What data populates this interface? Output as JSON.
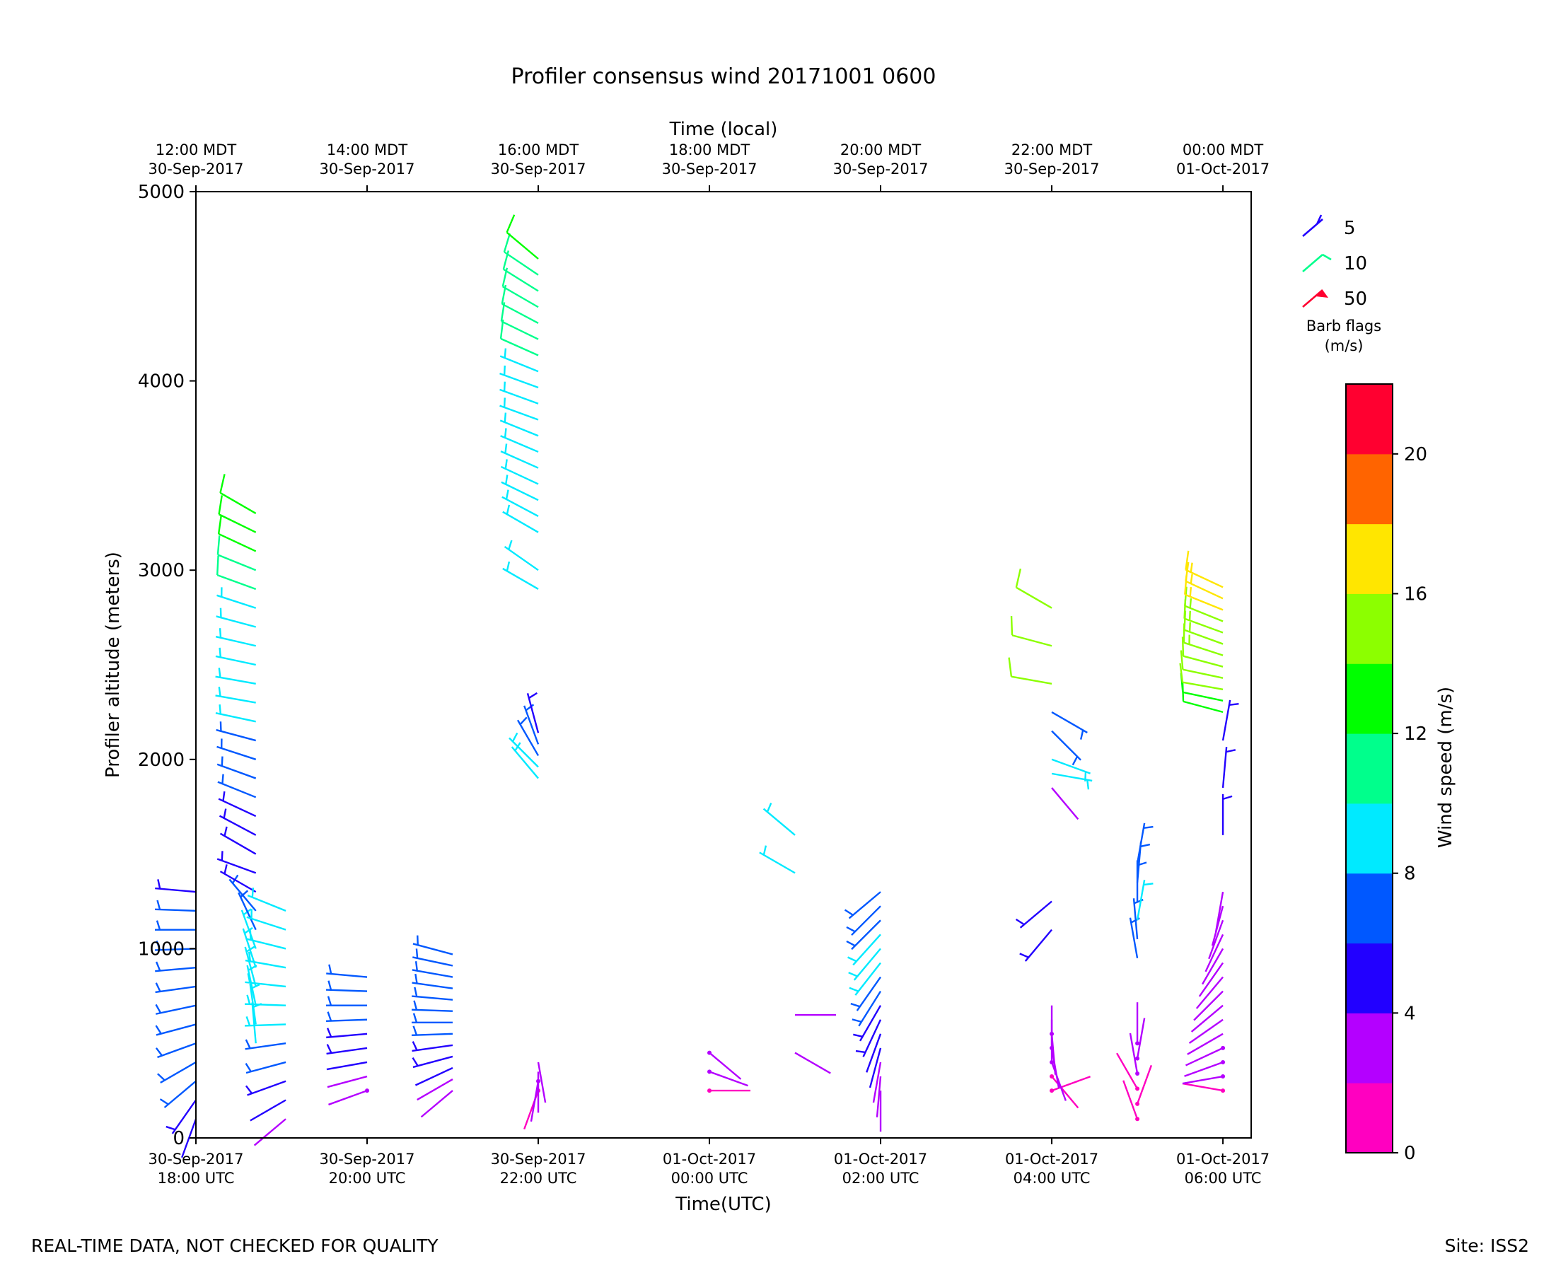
{
  "title": "Profiler consensus wind 20171001 0600",
  "footer_left": "REAL-TIME DATA, NOT CHECKED FOR QUALITY",
  "footer_right": "Site: ISS2",
  "chart_data": {
    "type": "wind-barb time-height",
    "title": "Profiler consensus wind 20171001 0600",
    "xlabel_bottom": "Time(UTC)",
    "xlabel_top": "Time (local)",
    "ylabel": "Profiler altitude (meters)",
    "ylim": [
      0,
      5000
    ],
    "yticks": [
      0,
      1000,
      2000,
      3000,
      4000,
      5000
    ],
    "xticks_bottom": [
      {
        "hour": 0,
        "line1": "30-Sep-2017",
        "line2": "18:00 UTC"
      },
      {
        "hour": 2,
        "line1": "30-Sep-2017",
        "line2": "20:00 UTC"
      },
      {
        "hour": 4,
        "line1": "30-Sep-2017",
        "line2": "22:00 UTC"
      },
      {
        "hour": 6,
        "line1": "01-Oct-2017",
        "line2": "00:00 UTC"
      },
      {
        "hour": 8,
        "line1": "01-Oct-2017",
        "line2": "02:00 UTC"
      },
      {
        "hour": 10,
        "line1": "01-Oct-2017",
        "line2": "04:00 UTC"
      },
      {
        "hour": 12,
        "line1": "01-Oct-2017",
        "line2": "06:00 UTC"
      }
    ],
    "xticks_top": [
      {
        "hour": 0,
        "line1": "12:00 MDT",
        "line2": "30-Sep-2017"
      },
      {
        "hour": 2,
        "line1": "14:00 MDT",
        "line2": "30-Sep-2017"
      },
      {
        "hour": 4,
        "line1": "16:00 MDT",
        "line2": "30-Sep-2017"
      },
      {
        "hour": 6,
        "line1": "18:00 MDT",
        "line2": "30-Sep-2017"
      },
      {
        "hour": 8,
        "line1": "20:00 MDT",
        "line2": "30-Sep-2017"
      },
      {
        "hour": 10,
        "line1": "22:00 MDT",
        "line2": "30-Sep-2017"
      },
      {
        "hour": 12,
        "line1": "00:00 MDT",
        "line2": "01-Oct-2017"
      }
    ],
    "xlim_hours": [
      0,
      12.33
    ],
    "colorbar": {
      "label": "Wind speed (m/s)",
      "range": [
        0,
        22
      ],
      "ticks": [
        0,
        4,
        8,
        12,
        16,
        20
      ],
      "colors": [
        "#ff00c0",
        "#b400ff",
        "#2200ff",
        "#0058ff",
        "#00eaff",
        "#00ff8c",
        "#00ff00",
        "#8cff00",
        "#ffe600",
        "#ff6400",
        "#ff0030"
      ]
    },
    "legend": {
      "title": "Barb flags\n(m/s)",
      "items": [
        {
          "label": "5",
          "color": "#2200ff"
        },
        {
          "label": "10",
          "color": "#00ff8c"
        },
        {
          "label": "50",
          "color": "#ff0030"
        }
      ]
    },
    "profiles": [
      {
        "hour": 0.0,
        "z0": 100,
        "z1": 1300,
        "dz": 100,
        "speed": [
          4,
          5,
          6,
          6,
          7,
          7,
          7,
          7,
          6,
          6,
          6,
          6,
          5
        ],
        "dir": [
          200,
          215,
          230,
          240,
          250,
          255,
          258,
          262,
          265,
          268,
          270,
          272,
          275
        ]
      },
      {
        "hour": 0.7,
        "z0": 1500,
        "z1": 3300,
        "dz": 100,
        "speed": [
          5,
          5,
          5,
          6,
          6,
          7,
          7,
          8,
          8,
          9,
          9,
          9,
          9,
          9,
          10,
          11,
          12,
          13,
          13
        ],
        "dir": [
          300,
          298,
          295,
          292,
          290,
          288,
          285,
          282,
          280,
          280,
          282,
          283,
          285,
          288,
          290,
          292,
          295,
          296,
          300
        ]
      },
      {
        "hour": 0.7,
        "z0": 500,
        "z1": 1400,
        "dz": 100,
        "speed": [
          9,
          9,
          9,
          9,
          9,
          8,
          7,
          6,
          5,
          5
        ],
        "dir": [
          355,
          352,
          348,
          345,
          342,
          340,
          335,
          320,
          300,
          290
        ]
      },
      {
        "hour": 1.05,
        "z0": 100,
        "z1": 1200,
        "dz": 100,
        "speed": [
          3,
          4,
          5,
          6,
          7,
          8,
          9,
          9,
          9,
          9,
          9,
          9
        ],
        "dir": [
          230,
          240,
          250,
          255,
          262,
          268,
          272,
          276,
          280,
          284,
          288,
          292
        ]
      },
      {
        "hour": 2.0,
        "z0": 250,
        "z1": 850,
        "dz": 75,
        "speed": [
          2,
          3,
          4,
          5,
          5,
          6,
          6,
          7,
          7
        ],
        "dir": [
          250,
          255,
          260,
          262,
          265,
          268,
          270,
          272,
          275
        ]
      },
      {
        "hour": 3.0,
        "z0": 250,
        "z1": 1000,
        "dz": 60,
        "speed": [
          3,
          3,
          4,
          5,
          5,
          6,
          7,
          7,
          7,
          7,
          7,
          7,
          7
        ],
        "dir": [
          230,
          240,
          245,
          255,
          262,
          268,
          270,
          272,
          275,
          278,
          280,
          282,
          285
        ]
      },
      {
        "hour": 4.0,
        "z0": 250,
        "z1": 400,
        "dz": 50,
        "speed": [
          1,
          2,
          3,
          3
        ],
        "dir": [
          200,
          190,
          180,
          170
        ]
      },
      {
        "hour": 4.0,
        "z0": 1900,
        "z1": 2150,
        "dz": 60,
        "speed": [
          8,
          8,
          6,
          6,
          5
        ],
        "dir": [
          320,
          315,
          330,
          340,
          345
        ]
      },
      {
        "hour": 4.0,
        "z0": 2900,
        "z1": 3100,
        "dz": 100,
        "speed": [
          9,
          9
        ],
        "dir": [
          300,
          305
        ]
      },
      {
        "hour": 4.0,
        "z0": 3200,
        "z1": 4650,
        "dz": 85,
        "speed": [
          9,
          9,
          9,
          9,
          9,
          9,
          9,
          9,
          9,
          9,
          9,
          10,
          10,
          11,
          11,
          11,
          11,
          12
        ],
        "dir": [
          300,
          298,
          296,
          295,
          294,
          293,
          292,
          290,
          290,
          290,
          292,
          294,
          296,
          298,
          300,
          302,
          304,
          310
        ]
      },
      {
        "hour": 6.0,
        "z0": 250,
        "z1": 450,
        "dz": 100,
        "speed": [
          1,
          2,
          2
        ],
        "dir": [
          90,
          110,
          130
        ]
      },
      {
        "hour": 7.0,
        "z0": 450,
        "z1": 650,
        "dz": 200,
        "speed": [
          3,
          3
        ],
        "dir": [
          120,
          90
        ]
      },
      {
        "hour": 7.0,
        "z0": 1400,
        "z1": 1600,
        "dz": 200,
        "speed": [
          9,
          9
        ],
        "dir": [
          300,
          310
        ]
      },
      {
        "hour": 8.0,
        "z0": 250,
        "z1": 1300,
        "dz": 75,
        "speed": [
          3,
          3,
          3,
          4,
          4,
          5,
          5,
          6,
          7,
          8,
          8,
          8,
          7,
          6,
          6
        ],
        "dir": [
          180,
          185,
          190,
          195,
          200,
          205,
          210,
          212,
          215,
          218,
          220,
          222,
          225,
          225,
          230
        ]
      },
      {
        "hour": 10.0,
        "z0": 250,
        "z1": 700,
        "dz": 75,
        "speed": [
          1,
          1,
          2,
          2,
          2,
          3,
          3
        ],
        "dir": [
          70,
          140,
          160,
          170,
          175,
          180,
          180
        ]
      },
      {
        "hour": 10.0,
        "z0": 1850,
        "z1": 2000,
        "dz": 75,
        "speed": [
          3,
          8,
          8
        ],
        "dir": [
          140,
          100,
          110
        ]
      },
      {
        "hour": 10.0,
        "z0": 2150,
        "z1": 2250,
        "dz": 100,
        "speed": [
          6,
          6
        ],
        "dir": [
          135,
          120
        ]
      },
      {
        "hour": 10.0,
        "z0": 2400,
        "z1": 2900,
        "dz": 200,
        "speed": [
          14,
          14,
          14
        ],
        "dir": [
          280,
          285,
          300
        ]
      },
      {
        "hour": 10.0,
        "z0": 1100,
        "z1": 1250,
        "dz": 150,
        "speed": [
          5,
          5
        ],
        "dir": [
          220,
          230
        ]
      },
      {
        "hour": 11.0,
        "z0": 100,
        "z1": 500,
        "dz": 80,
        "speed": [
          1,
          1,
          1,
          2,
          2,
          2
        ],
        "dir": [
          340,
          20,
          330,
          350,
          10,
          0
        ]
      },
      {
        "hour": 11.0,
        "z0": 950,
        "z1": 1450,
        "dz": 100,
        "speed": [
          6,
          6,
          8,
          6,
          6,
          6
        ],
        "dir": [
          350,
          355,
          10,
          0,
          5,
          10
        ]
      },
      {
        "hour": 12.0,
        "z0": 250,
        "z1": 1300,
        "dz": 75,
        "speed": [
          1,
          2,
          2,
          2,
          3,
          3,
          3,
          3,
          3,
          3,
          3,
          3,
          3,
          3,
          3
        ],
        "dir": [
          280,
          260,
          250,
          245,
          240,
          235,
          230,
          225,
          220,
          215,
          210,
          205,
          200,
          195,
          190
        ]
      },
      {
        "hour": 12.0,
        "z0": 1600,
        "z1": 2100,
        "dz": 250,
        "speed": [
          5,
          5,
          5
        ],
        "dir": [
          0,
          5,
          10
        ]
      },
      {
        "hour": 12.0,
        "z0": 2250,
        "z1": 2950,
        "dz": 60,
        "speed": [
          13,
          13,
          14,
          14,
          14,
          15,
          15,
          15,
          15,
          16,
          16,
          16
        ],
        "dir": [
          285,
          282,
          280,
          282,
          285,
          288,
          290,
          290,
          292,
          292,
          295,
          295
        ]
      }
    ]
  }
}
